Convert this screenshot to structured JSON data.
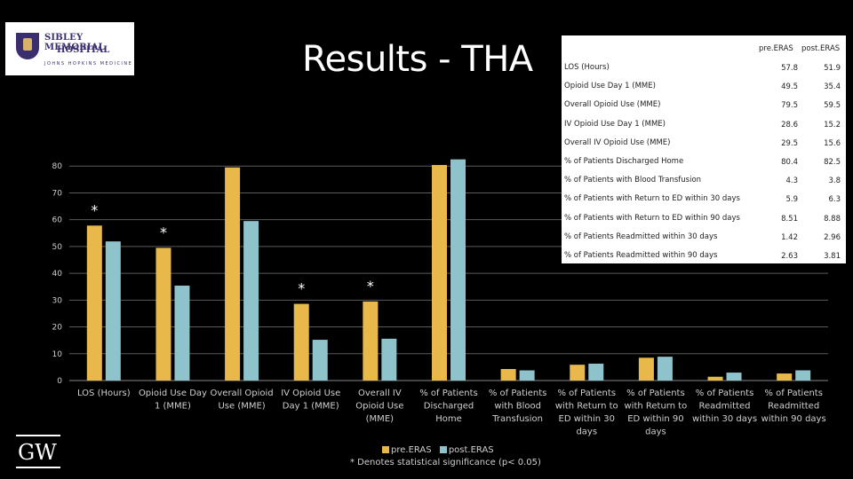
{
  "title": "Results - THA",
  "logo": {
    "line1": "SIBLEY MEMORIAL",
    "line2": "HOSPITAL",
    "line3": "JOHNS HOPKINS MEDICINE"
  },
  "footer_logo": "GW",
  "note": "* Denotes statistical significance (p< 0.05)",
  "colors": {
    "pre": "#e8b84a",
    "post": "#8fc3cc",
    "grid": "#5a5a5a"
  },
  "table": {
    "headers": [
      "pre.ERAS",
      "post.ERAS"
    ],
    "rows": [
      {
        "label": "LOS (Hours)",
        "pre": "57.8",
        "post": "51.9"
      },
      {
        "label": "Opioid Use Day 1 (MME)",
        "pre": "49.5",
        "post": "35.4"
      },
      {
        "label": "Overall Opioid Use (MME)",
        "pre": "79.5",
        "post": "59.5"
      },
      {
        "label": "IV Opioid Use Day 1 (MME)",
        "pre": "28.6",
        "post": "15.2"
      },
      {
        "label": "Overall IV Opioid Use (MME)",
        "pre": "29.5",
        "post": "15.6"
      },
      {
        "label": "% of Patients Discharged Home",
        "pre": "80.4",
        "post": "82.5"
      },
      {
        "label": "% of Patients with Blood Transfusion",
        "pre": "4.3",
        "post": "3.8"
      },
      {
        "label": "% of Patients with Return to ED within 30 days",
        "pre": "5.9",
        "post": "6.3"
      },
      {
        "label": "% of Patients with Return to ED within 90 days",
        "pre": "8.51",
        "post": "8.88"
      },
      {
        "label": "% of Patients Readmitted within 30 days",
        "pre": "1.42",
        "post": "2.96"
      },
      {
        "label": "% of Patients Readmitted within 90 days",
        "pre": "2.63",
        "post": "3.81"
      }
    ]
  },
  "chart_data": {
    "type": "bar",
    "categories": [
      [
        "LOS (Hours)"
      ],
      [
        "Opioid Use Day",
        "1 (MME)"
      ],
      [
        "Overall Opioid",
        "Use (MME)"
      ],
      [
        "IV Opioid Use",
        "Day 1 (MME)"
      ],
      [
        "Overall IV",
        "Opioid Use",
        "(MME)"
      ],
      [
        "% of Patients",
        "Discharged",
        "Home"
      ],
      [
        "% of Patients",
        "with Blood",
        "Transfusion"
      ],
      [
        "% of Patients",
        "with Return to",
        "ED within 30",
        "days"
      ],
      [
        "% of Patients",
        "with Return to",
        "ED within 90",
        "days"
      ],
      [
        "% of Patients",
        "Readmitted",
        "within 30 days"
      ],
      [
        "% of Patients",
        "Readmitted",
        "within 90 days"
      ]
    ],
    "series": [
      {
        "name": "pre.ERAS",
        "values": [
          57.8,
          49.5,
          79.5,
          28.6,
          29.5,
          80.4,
          4.3,
          5.9,
          8.51,
          1.42,
          2.63
        ]
      },
      {
        "name": "post.ERAS",
        "values": [
          51.9,
          35.4,
          59.5,
          15.2,
          15.6,
          82.5,
          3.8,
          6.3,
          8.88,
          2.96,
          3.81
        ]
      }
    ],
    "significant": [
      0,
      1,
      3,
      4
    ],
    "ylim": [
      0,
      90
    ],
    "yticks": [
      0,
      10,
      20,
      30,
      40,
      50,
      60,
      70,
      80
    ],
    "grid": true,
    "legend": "bottom"
  }
}
